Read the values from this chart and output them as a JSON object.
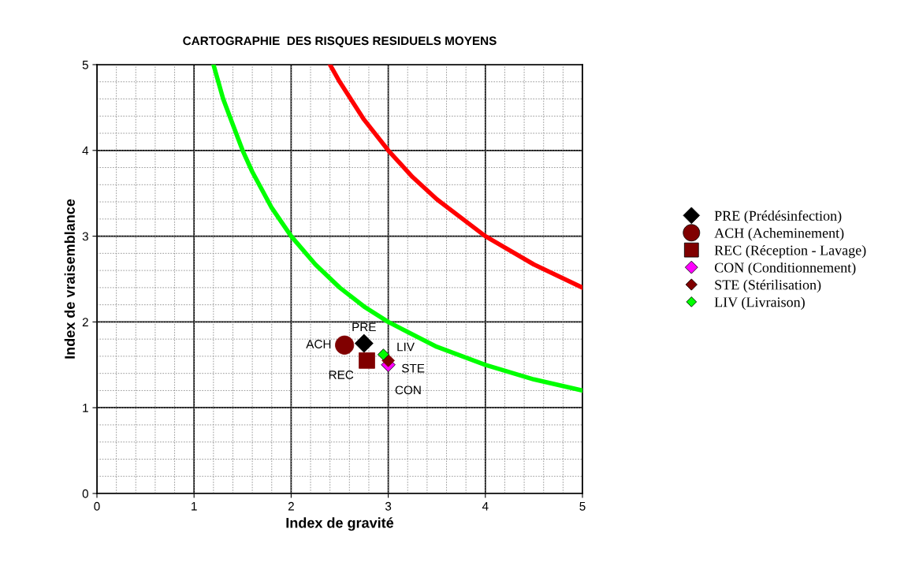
{
  "chart_data": {
    "type": "scatter",
    "title": "CARTOGRAPHIE  DES RISQUES RESIDUELS MOYENS",
    "xlabel": "Index de gravité",
    "ylabel": "Index de vraisemblance",
    "xlim": [
      0,
      5
    ],
    "ylim": [
      0,
      5
    ],
    "xticks": [
      0,
      1,
      2,
      3,
      4,
      5
    ],
    "yticks": [
      0,
      1,
      2,
      3,
      4,
      5
    ],
    "grid": true,
    "legend": "right",
    "series": [
      {
        "type": "line",
        "color": "#00ff00",
        "marker": "none",
        "x": [
          1.2,
          1.3,
          1.4,
          1.5,
          1.6,
          1.8,
          2,
          2.25,
          2.5,
          2.75,
          3,
          3.5,
          4,
          4.5,
          5
        ],
        "values": [
          5,
          4.6,
          4.3,
          4,
          3.75,
          3.33,
          3,
          2.67,
          2.4,
          2.18,
          2,
          1.71,
          1.5,
          1.33,
          1.2
        ]
      },
      {
        "type": "line",
        "color": "#ff0000",
        "marker": "none",
        "x": [
          2.4,
          2.5,
          2.75,
          3,
          3.25,
          3.5,
          4,
          4.5,
          5
        ],
        "values": [
          5,
          4.8,
          4.36,
          4,
          3.69,
          3.43,
          3,
          2.67,
          2.4
        ]
      },
      {
        "name": "PRE (Prédésinfection)",
        "color": "#000000",
        "marker": "diamond",
        "x": [
          2.75
        ],
        "values": [
          1.75
        ]
      },
      {
        "name": "ACH (Acheminement)",
        "color": "#800000",
        "marker": "circle",
        "x": [
          2.55
        ],
        "values": [
          1.73
        ]
      },
      {
        "name": "REC (Réception - Lavage)",
        "color": "#800000",
        "marker": "square",
        "x": [
          2.78
        ],
        "values": [
          1.55
        ]
      },
      {
        "name": "CON (Conditionnement)",
        "color": "#ff00ff",
        "marker": "diamond",
        "x": [
          3
        ],
        "values": [
          1.5
        ]
      },
      {
        "name": "STE (Stérilisation)",
        "color": "#800000",
        "marker": "diamond",
        "x": [
          3
        ],
        "values": [
          1.55
        ]
      },
      {
        "name": "LIV (Livraison)",
        "color": "#00ff00",
        "marker": "diamond",
        "x": [
          2.95
        ],
        "values": [
          1.62
        ]
      }
    ],
    "annotations": [
      {
        "text": "ACH",
        "x": 2.55,
        "y": 1.73
      },
      {
        "text": "PRE",
        "x": 2.75,
        "y": 1.75
      },
      {
        "text": "LIV",
        "x": 2.95,
        "y": 1.62
      },
      {
        "text": "REC",
        "x": 2.78,
        "y": 1.55
      },
      {
        "text": "STE",
        "x": 3,
        "y": 1.55
      },
      {
        "text": "CON",
        "x": 3,
        "y": 1.5
      }
    ]
  }
}
